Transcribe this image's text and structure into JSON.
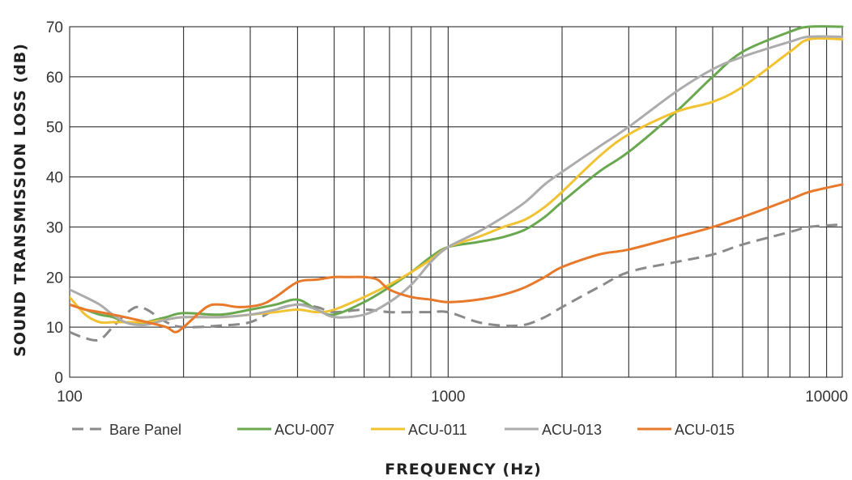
{
  "chart_data": {
    "type": "line",
    "xlabel": "FREQUENCY (Hz)",
    "ylabel": "SOUND TRANSMISSION LOSS (dB)",
    "xscale": "log",
    "xlim": [
      100,
      11000
    ],
    "ylim": [
      0,
      70
    ],
    "x_ticks": [
      100,
      1000,
      10000
    ],
    "x_tick_labels": [
      "100",
      "1000",
      "10000"
    ],
    "y_ticks": [
      0,
      10,
      20,
      30,
      40,
      50,
      60,
      70
    ],
    "y_tick_labels": [
      "0",
      "10",
      "20",
      "30",
      "40",
      "50",
      "60",
      "70"
    ],
    "grid": true,
    "legend_position": "bottom",
    "series": [
      {
        "name": "Bare Panel",
        "color": "#8a8a8a",
        "dash": true,
        "x": [
          100,
          110,
          120,
          130,
          140,
          150,
          160,
          180,
          200,
          250,
          300,
          350,
          400,
          450,
          500,
          600,
          700,
          800,
          900,
          1000,
          1200,
          1400,
          1600,
          1800,
          2000,
          2500,
          3000,
          4000,
          5000,
          6000,
          8000,
          9000,
          11000
        ],
        "values": [
          9,
          7.8,
          7.5,
          10,
          12.5,
          14,
          13.5,
          11,
          10,
          10.3,
          11,
          13.5,
          14.5,
          14,
          13,
          13.5,
          13,
          13,
          13,
          13,
          11,
          10.3,
          10.5,
          12,
          14,
          18,
          21,
          23,
          24.5,
          26.5,
          29,
          30,
          30.5
        ]
      },
      {
        "name": "ACU-007",
        "color": "#6aa84f",
        "dash": false,
        "x": [
          100,
          110,
          120,
          130,
          140,
          150,
          160,
          180,
          200,
          250,
          300,
          350,
          400,
          450,
          500,
          600,
          700,
          800,
          900,
          1000,
          1200,
          1400,
          1600,
          1800,
          2000,
          2500,
          3000,
          4000,
          5000,
          6000,
          8000,
          9000,
          11000
        ],
        "values": [
          14.5,
          13.5,
          12.5,
          12,
          11,
          10.5,
          11,
          12,
          12.8,
          12.5,
          13.5,
          14.5,
          15.5,
          13.5,
          12.5,
          15,
          18,
          21,
          24,
          26,
          27,
          28,
          29.5,
          32,
          35,
          41,
          45,
          53,
          60,
          65,
          69,
          70,
          70
        ]
      },
      {
        "name": "ACU-011",
        "color": "#f1c232",
        "dash": false,
        "x": [
          100,
          110,
          120,
          130,
          140,
          150,
          160,
          180,
          200,
          250,
          300,
          350,
          400,
          450,
          500,
          600,
          700,
          800,
          900,
          1000,
          1200,
          1400,
          1600,
          1800,
          2000,
          2500,
          3000,
          4000,
          5000,
          6000,
          8000,
          9000,
          11000
        ],
        "values": [
          16,
          12.5,
          11,
          11,
          11,
          11,
          11,
          11.5,
          12,
          12,
          12.5,
          13,
          13.5,
          13,
          13.5,
          16,
          18.5,
          21,
          23.5,
          26,
          28,
          30,
          31.5,
          34,
          37,
          44,
          48.5,
          53,
          55,
          58,
          65,
          67.5,
          67.5
        ]
      },
      {
        "name": "ACU-013",
        "color": "#acacac",
        "dash": false,
        "x": [
          100,
          110,
          120,
          130,
          140,
          150,
          160,
          180,
          200,
          250,
          300,
          350,
          400,
          450,
          500,
          600,
          700,
          800,
          900,
          1000,
          1200,
          1400,
          1600,
          1800,
          2000,
          2500,
          3000,
          4000,
          5000,
          6000,
          8000,
          9000,
          11000
        ],
        "values": [
          17.5,
          16,
          14.5,
          12.5,
          11,
          10.5,
          10.5,
          11.5,
          12,
          12,
          12.5,
          13.5,
          14.5,
          13.5,
          12,
          12.5,
          15,
          18.5,
          23,
          26,
          29,
          32,
          35,
          38.5,
          41,
          46,
          50,
          57,
          61.5,
          64,
          67,
          68,
          68
        ]
      },
      {
        "name": "ACU-015",
        "color": "#e8782a",
        "dash": false,
        "x": [
          100,
          110,
          120,
          130,
          140,
          150,
          160,
          180,
          190,
          200,
          230,
          250,
          280,
          320,
          350,
          400,
          450,
          500,
          550,
          600,
          650,
          700,
          800,
          900,
          1000,
          1200,
          1400,
          1600,
          1800,
          2000,
          2500,
          3000,
          4000,
          5000,
          6000,
          8000,
          9000,
          11000
        ],
        "values": [
          14.5,
          13.5,
          13,
          12.5,
          12,
          11.5,
          11,
          10,
          9,
          10,
          14,
          14.5,
          14,
          14.5,
          16,
          19,
          19.5,
          20,
          20,
          20,
          19.5,
          17.5,
          16,
          15.5,
          15,
          15.5,
          16.5,
          18,
          20,
          22,
          24.5,
          25.5,
          28,
          30,
          32,
          35.5,
          37,
          38.5
        ]
      }
    ]
  }
}
